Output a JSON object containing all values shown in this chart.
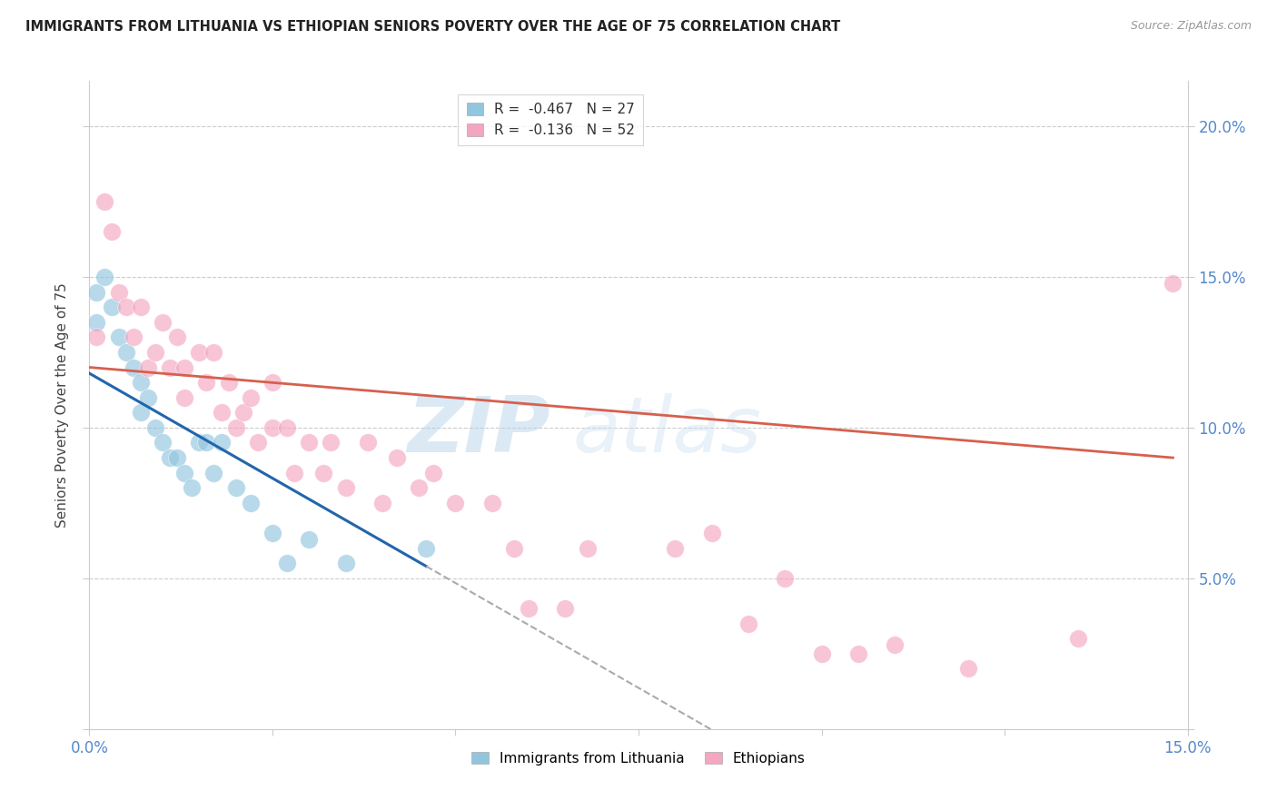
{
  "title": "IMMIGRANTS FROM LITHUANIA VS ETHIOPIAN SENIORS POVERTY OVER THE AGE OF 75 CORRELATION CHART",
  "source": "Source: ZipAtlas.com",
  "ylabel": "Seniors Poverty Over the Age of 75",
  "xlim": [
    0.0,
    0.15
  ],
  "ylim": [
    0.0,
    0.215
  ],
  "legend_r1": "-0.467",
  "legend_n1": "27",
  "legend_r2": "-0.136",
  "legend_n2": "52",
  "legend_label1": "Immigrants from Lithuania",
  "legend_label2": "Ethiopians",
  "color_blue": "#92c5de",
  "color_pink": "#f4a6c0",
  "color_blue_line": "#2166ac",
  "color_pink_line": "#d6604d",
  "color_dashed": "#aaaaaa",
  "watermark_zip": "ZIP",
  "watermark_atlas": "atlas",
  "blue_line_x0": 0.0,
  "blue_line_y0": 0.118,
  "blue_line_x1": 0.046,
  "blue_line_y1": 0.054,
  "pink_line_x0": 0.0,
  "pink_line_y0": 0.12,
  "pink_line_x1": 0.148,
  "pink_line_y1": 0.09,
  "lithuania_x": [
    0.001,
    0.001,
    0.002,
    0.003,
    0.004,
    0.005,
    0.006,
    0.007,
    0.007,
    0.008,
    0.009,
    0.01,
    0.011,
    0.012,
    0.013,
    0.014,
    0.015,
    0.016,
    0.017,
    0.018,
    0.02,
    0.022,
    0.025,
    0.027,
    0.03,
    0.035,
    0.046
  ],
  "lithuania_y": [
    0.145,
    0.135,
    0.15,
    0.14,
    0.13,
    0.125,
    0.12,
    0.115,
    0.105,
    0.11,
    0.1,
    0.095,
    0.09,
    0.09,
    0.085,
    0.08,
    0.095,
    0.095,
    0.085,
    0.095,
    0.08,
    0.075,
    0.065,
    0.055,
    0.063,
    0.055,
    0.06
  ],
  "ethiopian_x": [
    0.001,
    0.002,
    0.003,
    0.004,
    0.005,
    0.006,
    0.007,
    0.008,
    0.009,
    0.01,
    0.011,
    0.012,
    0.013,
    0.013,
    0.015,
    0.016,
    0.017,
    0.018,
    0.019,
    0.02,
    0.021,
    0.022,
    0.023,
    0.025,
    0.025,
    0.027,
    0.028,
    0.03,
    0.032,
    0.033,
    0.035,
    0.038,
    0.04,
    0.042,
    0.045,
    0.047,
    0.05,
    0.055,
    0.058,
    0.06,
    0.065,
    0.068,
    0.08,
    0.085,
    0.09,
    0.095,
    0.1,
    0.105,
    0.11,
    0.12,
    0.135,
    0.148
  ],
  "ethiopian_y": [
    0.13,
    0.175,
    0.165,
    0.145,
    0.14,
    0.13,
    0.14,
    0.12,
    0.125,
    0.135,
    0.12,
    0.13,
    0.12,
    0.11,
    0.125,
    0.115,
    0.125,
    0.105,
    0.115,
    0.1,
    0.105,
    0.11,
    0.095,
    0.115,
    0.1,
    0.1,
    0.085,
    0.095,
    0.085,
    0.095,
    0.08,
    0.095,
    0.075,
    0.09,
    0.08,
    0.085,
    0.075,
    0.075,
    0.06,
    0.04,
    0.04,
    0.06,
    0.06,
    0.065,
    0.035,
    0.05,
    0.025,
    0.025,
    0.028,
    0.02,
    0.03,
    0.148
  ]
}
